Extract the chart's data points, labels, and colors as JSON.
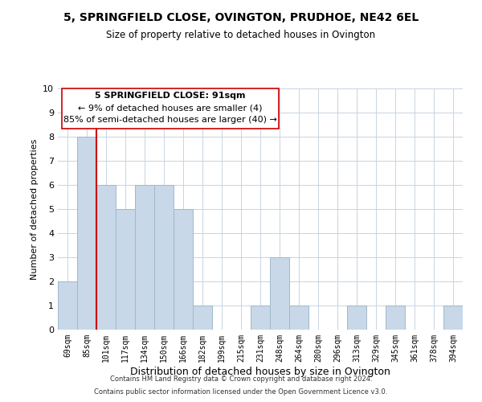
{
  "title": "5, SPRINGFIELD CLOSE, OVINGTON, PRUDHOE, NE42 6EL",
  "subtitle": "Size of property relative to detached houses in Ovington",
  "xlabel": "Distribution of detached houses by size in Ovington",
  "ylabel": "Number of detached properties",
  "categories": [
    "69sqm",
    "85sqm",
    "101sqm",
    "117sqm",
    "134sqm",
    "150sqm",
    "166sqm",
    "182sqm",
    "199sqm",
    "215sqm",
    "231sqm",
    "248sqm",
    "264sqm",
    "280sqm",
    "296sqm",
    "313sqm",
    "329sqm",
    "345sqm",
    "361sqm",
    "378sqm",
    "394sqm"
  ],
  "values": [
    2,
    8,
    6,
    5,
    6,
    6,
    5,
    1,
    0,
    0,
    1,
    3,
    1,
    0,
    0,
    1,
    0,
    1,
    0,
    0,
    1
  ],
  "bar_color": "#c8d8e8",
  "bar_edge_color": "#a0b8cc",
  "highlight_bar_index": 1,
  "highlight_color": "#cc0000",
  "ylim": [
    0,
    10
  ],
  "yticks": [
    0,
    1,
    2,
    3,
    4,
    5,
    6,
    7,
    8,
    9,
    10
  ],
  "annotation_title": "5 SPRINGFIELD CLOSE: 91sqm",
  "annotation_line1": "← 9% of detached houses are smaller (4)",
  "annotation_line2": "85% of semi-detached houses are larger (40) →",
  "footer1": "Contains HM Land Registry data © Crown copyright and database right 2024.",
  "footer2": "Contains public sector information licensed under the Open Government Licence v3.0.",
  "background_color": "#ffffff",
  "grid_color": "#c8d4e0"
}
